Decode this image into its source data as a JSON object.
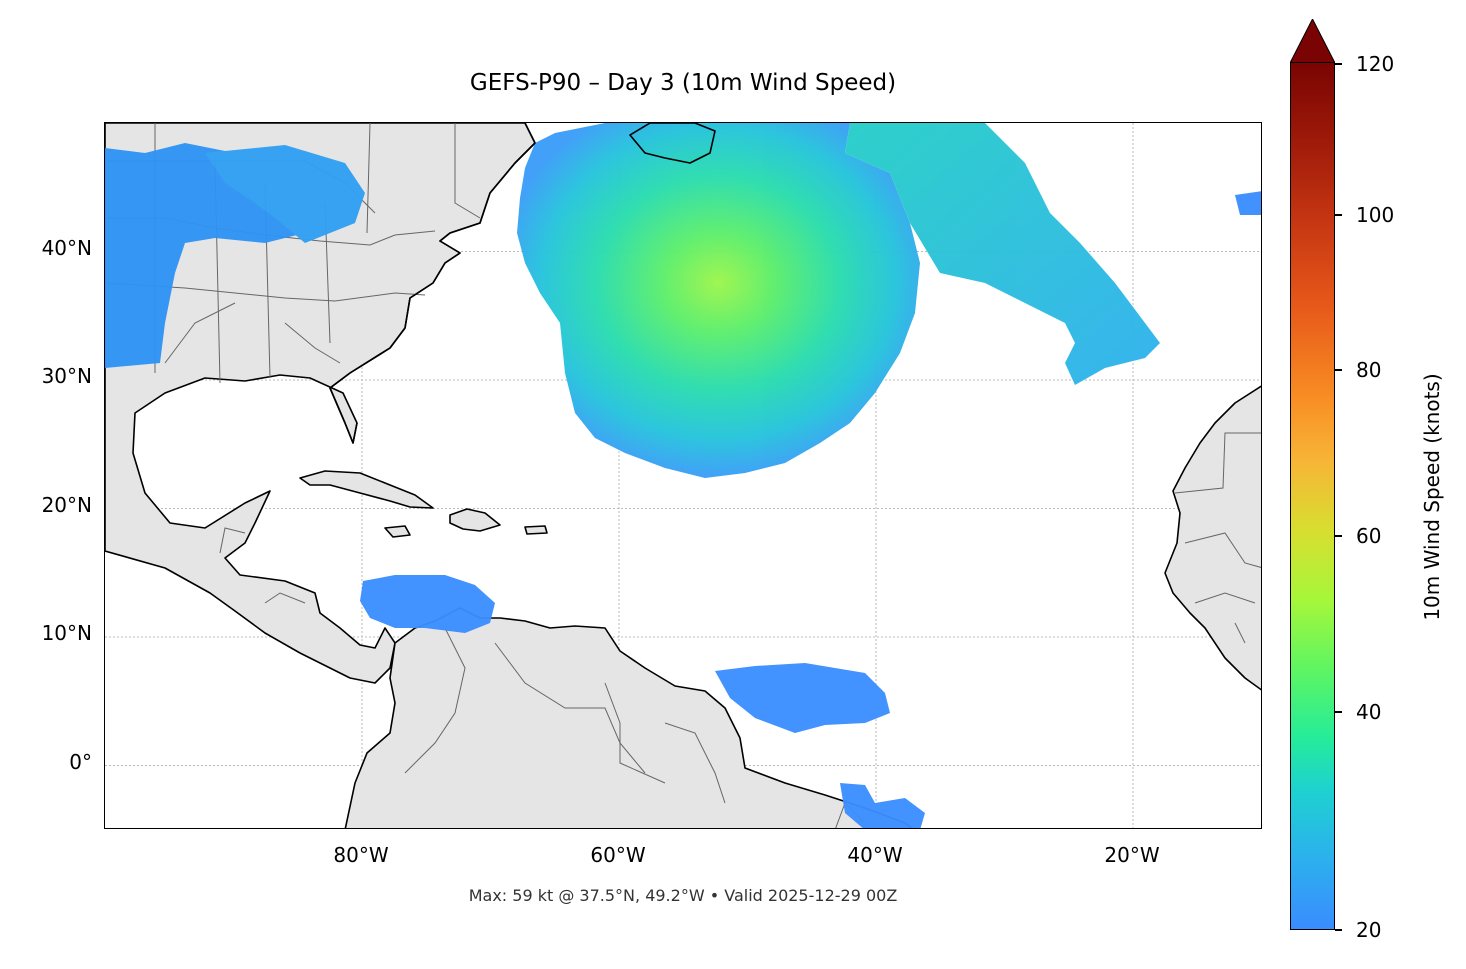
{
  "title": "GEFS-P90 – Day 3 (10m Wind Speed)",
  "footer": "Max: 59 kt @ 37.5°N, 49.2°W • Valid 2025-12-29 00Z",
  "map": {
    "projection": "PlateCarree",
    "extent_lon": [
      -100,
      -10
    ],
    "extent_lat": [
      -5,
      50
    ],
    "land_color": "#e5e5e5",
    "coast_color": "#000000",
    "border_color": "#666666",
    "gridlines": "dotted gray",
    "lat_ticks": [
      {
        "value": 40,
        "label": "40°N"
      },
      {
        "value": 30,
        "label": "30°N"
      },
      {
        "value": 20,
        "label": "20°N"
      },
      {
        "value": 10,
        "label": "10°N"
      },
      {
        "value": 0,
        "label": "0°"
      }
    ],
    "lon_ticks": [
      {
        "value": -80,
        "label": "80°W"
      },
      {
        "value": -60,
        "label": "60°W"
      },
      {
        "value": -40,
        "label": "40°W"
      },
      {
        "value": -20,
        "label": "20°W"
      }
    ],
    "wind_max": {
      "speed_kt": 59,
      "lat": 37.5,
      "lon": -49.2
    }
  },
  "colorbar": {
    "label": "10m Wind Speed (knots)",
    "min": 20,
    "max": 120,
    "extend": "max",
    "colormap": "turbo",
    "ticks": [
      {
        "value": 120,
        "label": "120"
      },
      {
        "value": 100,
        "label": "100"
      },
      {
        "value": 80,
        "label": "80"
      },
      {
        "value": 60,
        "label": "60"
      },
      {
        "value": 40,
        "label": "40"
      },
      {
        "value": 20,
        "label": "20"
      }
    ]
  }
}
